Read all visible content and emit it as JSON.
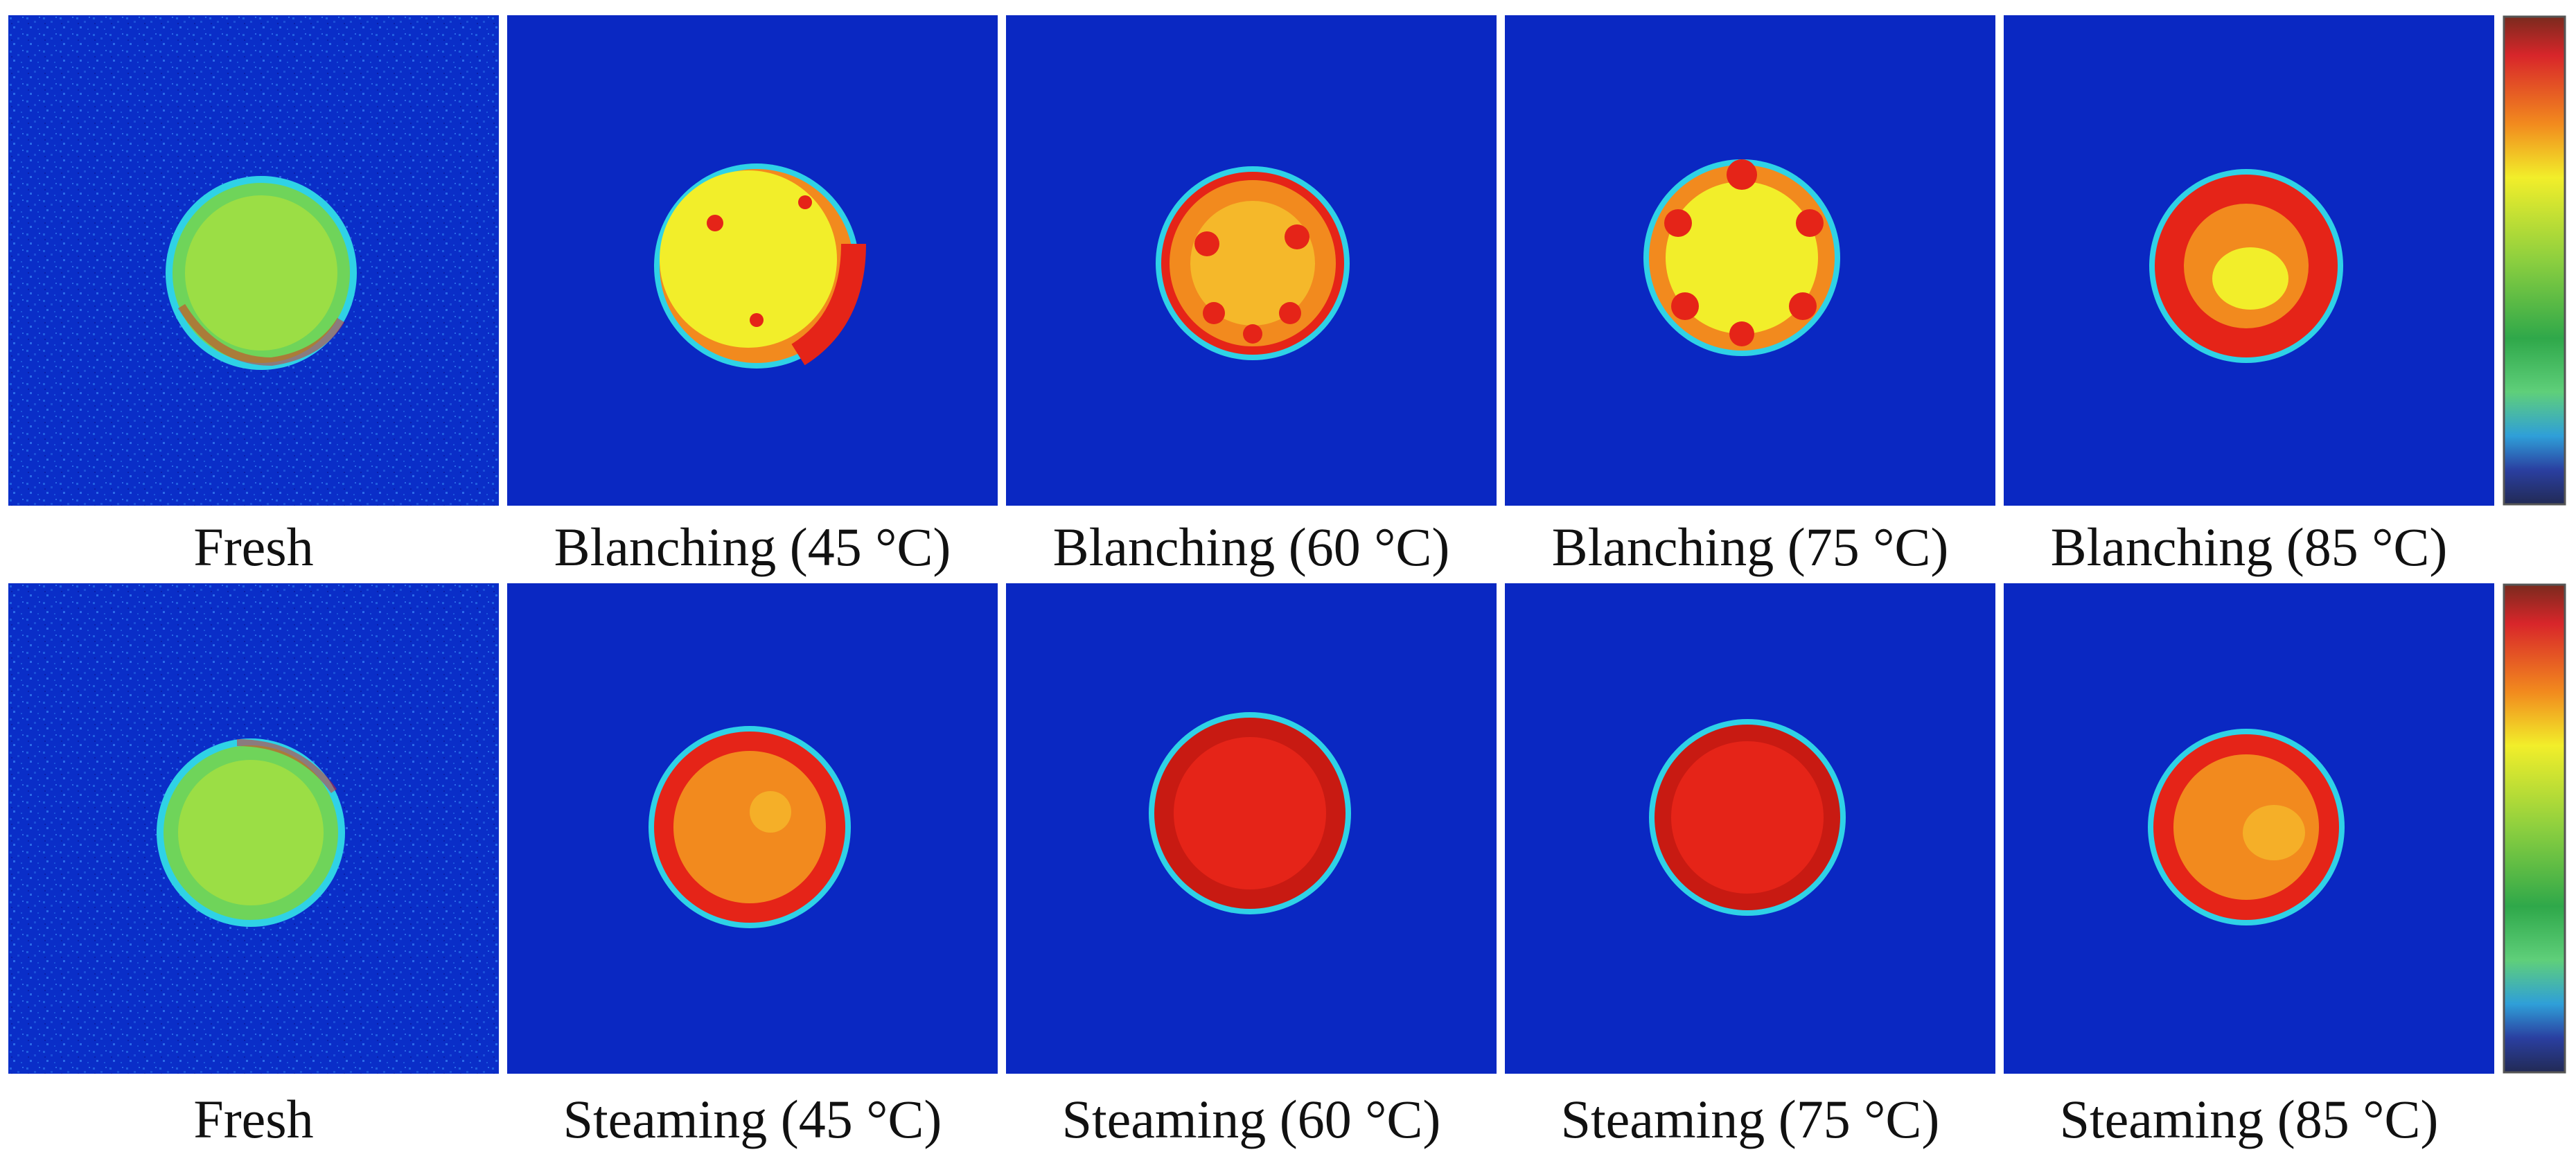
{
  "rows": [
    {
      "panels": [
        {
          "label": "Fresh",
          "sample": "fresh-pale"
        },
        {
          "label": "Blanching (45 °C)",
          "sample": "yellow-rim"
        },
        {
          "label": "Blanching (60 °C)",
          "sample": "orange-spots"
        },
        {
          "label": "Blanching (75 °C)",
          "sample": "yellow-spots"
        },
        {
          "label": "Blanching (85 °C)",
          "sample": "red-ring"
        }
      ]
    },
    {
      "panels": [
        {
          "label": "Fresh",
          "sample": "fresh-pale"
        },
        {
          "label": "Steaming (45 °C)",
          "sample": "red-orange"
        },
        {
          "label": "Steaming (60 °C)",
          "sample": "deep-red"
        },
        {
          "label": "Steaming (75 °C)",
          "sample": "deep-red"
        },
        {
          "label": "Steaming (85 °C)",
          "sample": "red-core"
        }
      ]
    }
  ],
  "colors": {
    "background": "#0a28c2",
    "cyan": "#2fd2e6",
    "green": "#4ec24a",
    "yellow": "#f2ee2a",
    "orange": "#f28a1e",
    "red": "#e52418",
    "deep_red": "#c81a12"
  }
}
